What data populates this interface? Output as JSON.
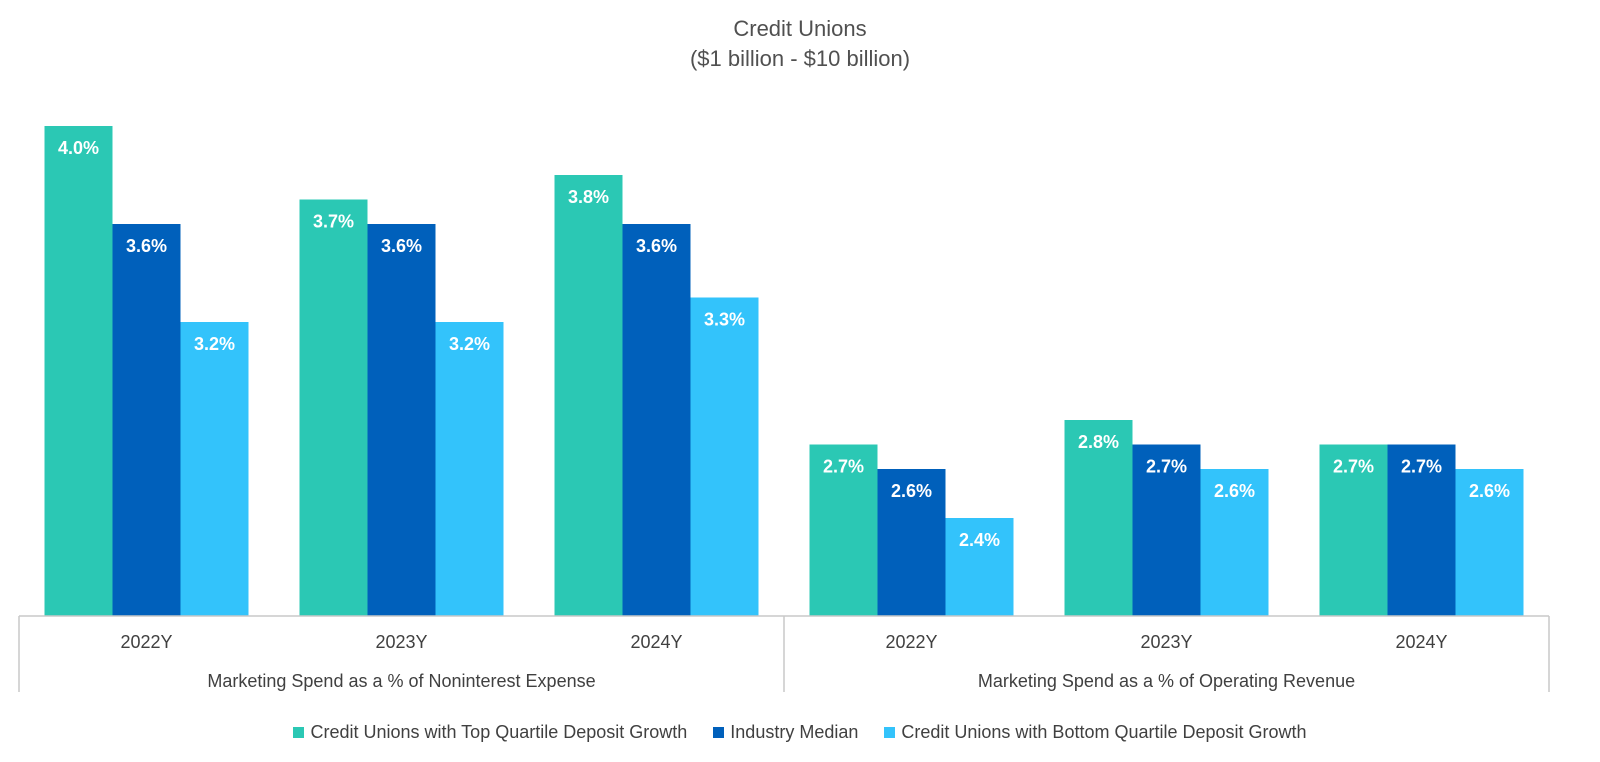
{
  "chart_data": {
    "type": "bar",
    "title": "Credit Unions",
    "subtitle": "($1 billion - $10 billion)",
    "groups": [
      {
        "label": "Marketing Spend as a % of Noninterest Expense",
        "categories": [
          "2022Y",
          "2023Y",
          "2024Y"
        ]
      },
      {
        "label": "Marketing Spend as a % of Operating Revenue",
        "categories": [
          "2022Y",
          "2023Y",
          "2024Y"
        ]
      }
    ],
    "categories": [
      "2022Y",
      "2023Y",
      "2024Y",
      "2022Y",
      "2023Y",
      "2024Y"
    ],
    "series": [
      {
        "name": "Credit Unions with Top Quartile Deposit Growth",
        "color": "#2BC8B4",
        "values": [
          4.0,
          3.7,
          3.8,
          2.7,
          2.8,
          2.7
        ]
      },
      {
        "name": "Industry Median",
        "color": "#0060BB",
        "values": [
          3.6,
          3.6,
          3.6,
          2.6,
          2.7,
          2.7
        ]
      },
      {
        "name": "Credit Unions with Bottom Quartile Deposit Growth",
        "color": "#33C3FB",
        "values": [
          3.2,
          3.2,
          3.3,
          2.4,
          2.6,
          2.6
        ]
      }
    ],
    "data_labels": [
      [
        "4.0%",
        "3.7%",
        "3.8%",
        "2.7%",
        "2.8%",
        "2.7%"
      ],
      [
        "3.6%",
        "3.6%",
        "3.6%",
        "2.6%",
        "2.7%",
        "2.7%"
      ],
      [
        "3.2%",
        "3.2%",
        "3.3%",
        "2.4%",
        "2.6%",
        "2.6%"
      ]
    ],
    "ylim": [
      2.0,
      4.1
    ],
    "grid": false,
    "legend_position": "bottom"
  }
}
